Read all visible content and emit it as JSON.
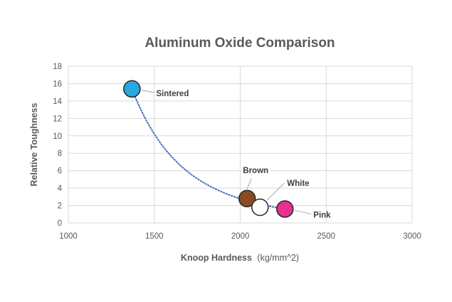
{
  "chart_data": {
    "type": "scatter",
    "title": "Aluminum Oxide Comparison",
    "xlabel": "Knoop Hardness",
    "xlabel_unit": "(kg/mm^2)",
    "ylabel": "Relative Toughness",
    "xlim": [
      1000,
      3000
    ],
    "ylim": [
      0,
      18
    ],
    "xticks": [
      "1000",
      "1500",
      "2000",
      "2500",
      "3000"
    ],
    "yticks": [
      "0",
      "2",
      "4",
      "6",
      "8",
      "10",
      "12",
      "14",
      "16",
      "18"
    ],
    "grid": true,
    "trendline": "dotted power curve",
    "points": [
      {
        "label": "Sintered",
        "x": 1370,
        "y": 15.4,
        "color": "#29a8e0"
      },
      {
        "label": "Brown",
        "x": 2040,
        "y": 2.8,
        "color": "#8a4a22"
      },
      {
        "label": "White",
        "x": 2115,
        "y": 1.8,
        "color": "#ffffff"
      },
      {
        "label": "Pink",
        "x": 2260,
        "y": 1.6,
        "color": "#e8308f"
      }
    ]
  }
}
